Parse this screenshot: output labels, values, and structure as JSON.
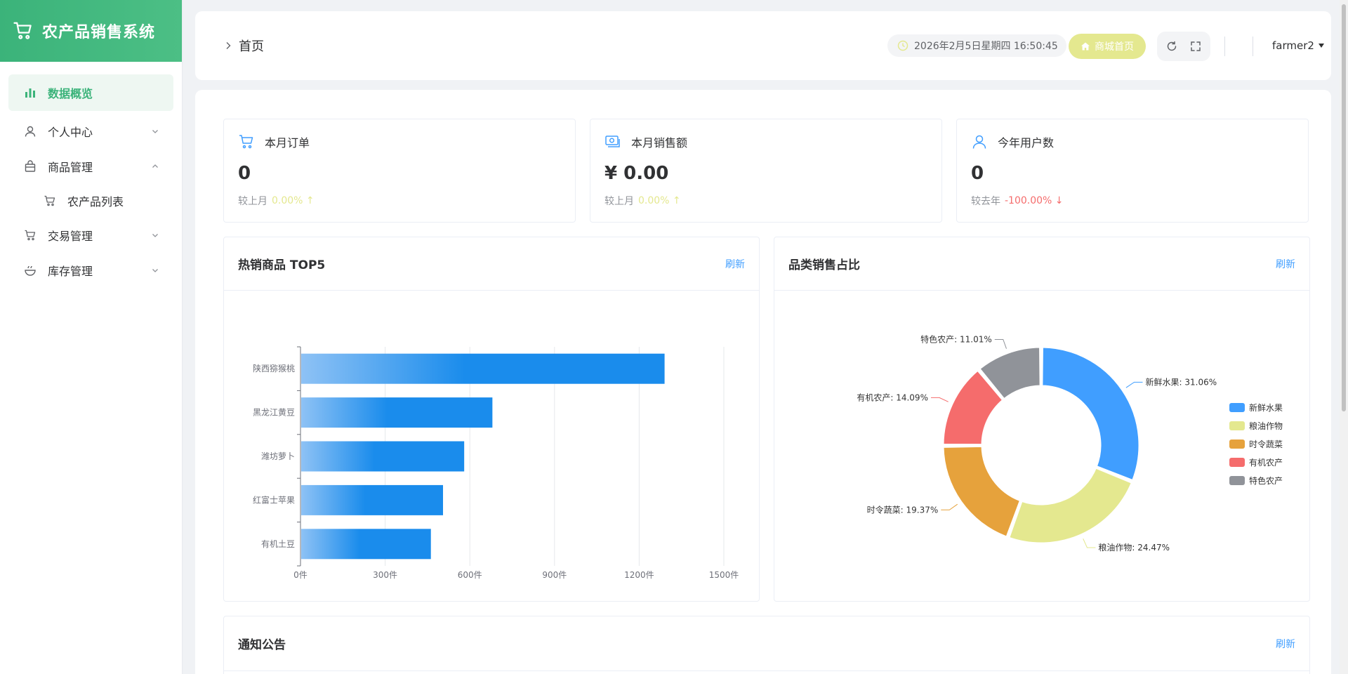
{
  "app": {
    "title": "农产品销售系统",
    "accent": "#3bb37a"
  },
  "sidebar": {
    "items": [
      {
        "label": "数据概览",
        "icon": "bar-chart-icon"
      },
      {
        "label": "个人中心",
        "icon": "user-icon"
      },
      {
        "label": "商品管理",
        "icon": "bag-icon"
      },
      {
        "label": "农产品列表",
        "icon": "cart-icon"
      },
      {
        "label": "交易管理",
        "icon": "cart-icon"
      },
      {
        "label": "库存管理",
        "icon": "bowl-icon"
      }
    ]
  },
  "header": {
    "breadcrumb": "首页",
    "datetime": "2026年2月5日星期四 16:50:45",
    "shop_button": "商城首页",
    "username": "farmer2"
  },
  "stats": [
    {
      "title": "本月订单",
      "value": "0",
      "compare_label": "较上月",
      "compare_value": "0.00% ↑",
      "trend": "up"
    },
    {
      "title": "本月销售额",
      "value": "¥ 0.00",
      "compare_label": "较上月",
      "compare_value": "0.00% ↑",
      "trend": "up"
    },
    {
      "title": "今年用户数",
      "value": "0",
      "compare_label": "较去年",
      "compare_value": "-100.00% ↓",
      "trend": "down"
    }
  ],
  "panels": {
    "top5": {
      "title": "热销商品 TOP5",
      "refresh": "刷新"
    },
    "category": {
      "title": "品类销售占比",
      "refresh": "刷新"
    },
    "notice": {
      "title": "通知公告",
      "refresh": "刷新"
    }
  },
  "chart_data": [
    {
      "type": "bar",
      "orientation": "horizontal",
      "title": "热销商品 TOP5",
      "categories": [
        "陕西猕猴桃",
        "黑龙江黄豆",
        "潍坊萝卜",
        "红富士苹果",
        "有机土豆"
      ],
      "values": [
        1290,
        680,
        580,
        505,
        462
      ],
      "xlim": [
        0,
        1500
      ],
      "xticks": [
        "0件",
        "300件",
        "600件",
        "900件",
        "1200件",
        "1500件"
      ],
      "unit": "件",
      "color": "#1a8cec"
    },
    {
      "type": "pie",
      "style": "donut",
      "title": "品类销售占比",
      "slices": [
        {
          "name": "新鲜水果",
          "value": 31.06,
          "label": "新鲜水果: 31.06%",
          "color": "#409eff"
        },
        {
          "name": "粮油作物",
          "value": 24.47,
          "label": "粮油作物: 24.47%",
          "color": "#e4e88f"
        },
        {
          "name": "时令蔬菜",
          "value": 19.37,
          "label": "时令蔬菜: 19.37%",
          "color": "#e6a23c"
        },
        {
          "name": "有机农产",
          "value": 14.09,
          "label": "有机农产: 14.09%",
          "color": "#f56c6c"
        },
        {
          "name": "特色农产",
          "value": 11.01,
          "label": "特色农产: 11.01%",
          "color": "#909399"
        }
      ],
      "legend_position": "right"
    }
  ]
}
